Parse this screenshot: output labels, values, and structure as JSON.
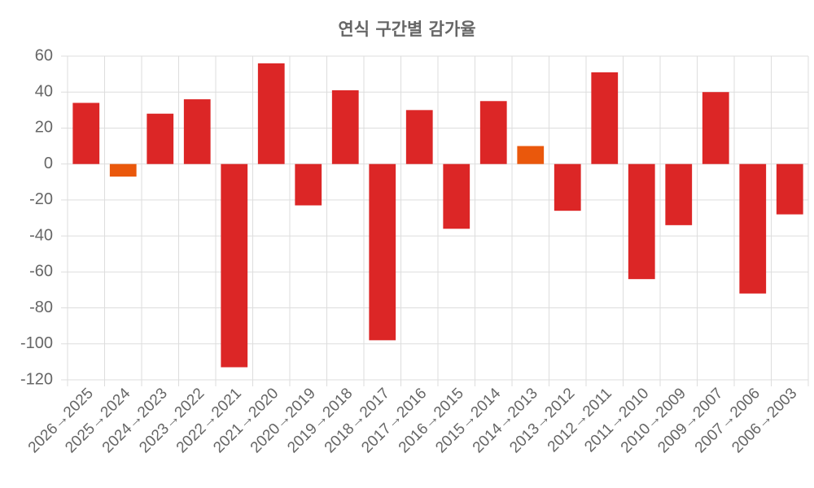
{
  "chart_data": {
    "type": "bar",
    "title": "연식 구간별 감가율",
    "categories": [
      "2026→2025",
      "2025→2024",
      "2024→2023",
      "2023→2022",
      "2022→2021",
      "2021→2020",
      "2020→2019",
      "2019→2018",
      "2018→2017",
      "2017→2016",
      "2016→2015",
      "2015→2014",
      "2014→2013",
      "2013→2012",
      "2012→2011",
      "2011→2010",
      "2010→2009",
      "2009→2007",
      "2007→2006",
      "2006→2003"
    ],
    "values": [
      34,
      -7,
      28,
      36,
      -113,
      56,
      -23,
      41,
      -98,
      30,
      -36,
      35,
      10,
      -26,
      51,
      -64,
      -34,
      40,
      -72,
      -28
    ],
    "colors": [
      "#dc2626",
      "#ea580c",
      "#dc2626",
      "#dc2626",
      "#dc2626",
      "#dc2626",
      "#dc2626",
      "#dc2626",
      "#dc2626",
      "#dc2626",
      "#dc2626",
      "#dc2626",
      "#ea580c",
      "#dc2626",
      "#dc2626",
      "#dc2626",
      "#dc2626",
      "#dc2626",
      "#dc2626",
      "#dc2626"
    ],
    "ylim": [
      -120,
      60
    ],
    "yticks": [
      60,
      40,
      20,
      0,
      -20,
      -40,
      -60,
      -80,
      -100,
      -120
    ],
    "grid": true
  }
}
